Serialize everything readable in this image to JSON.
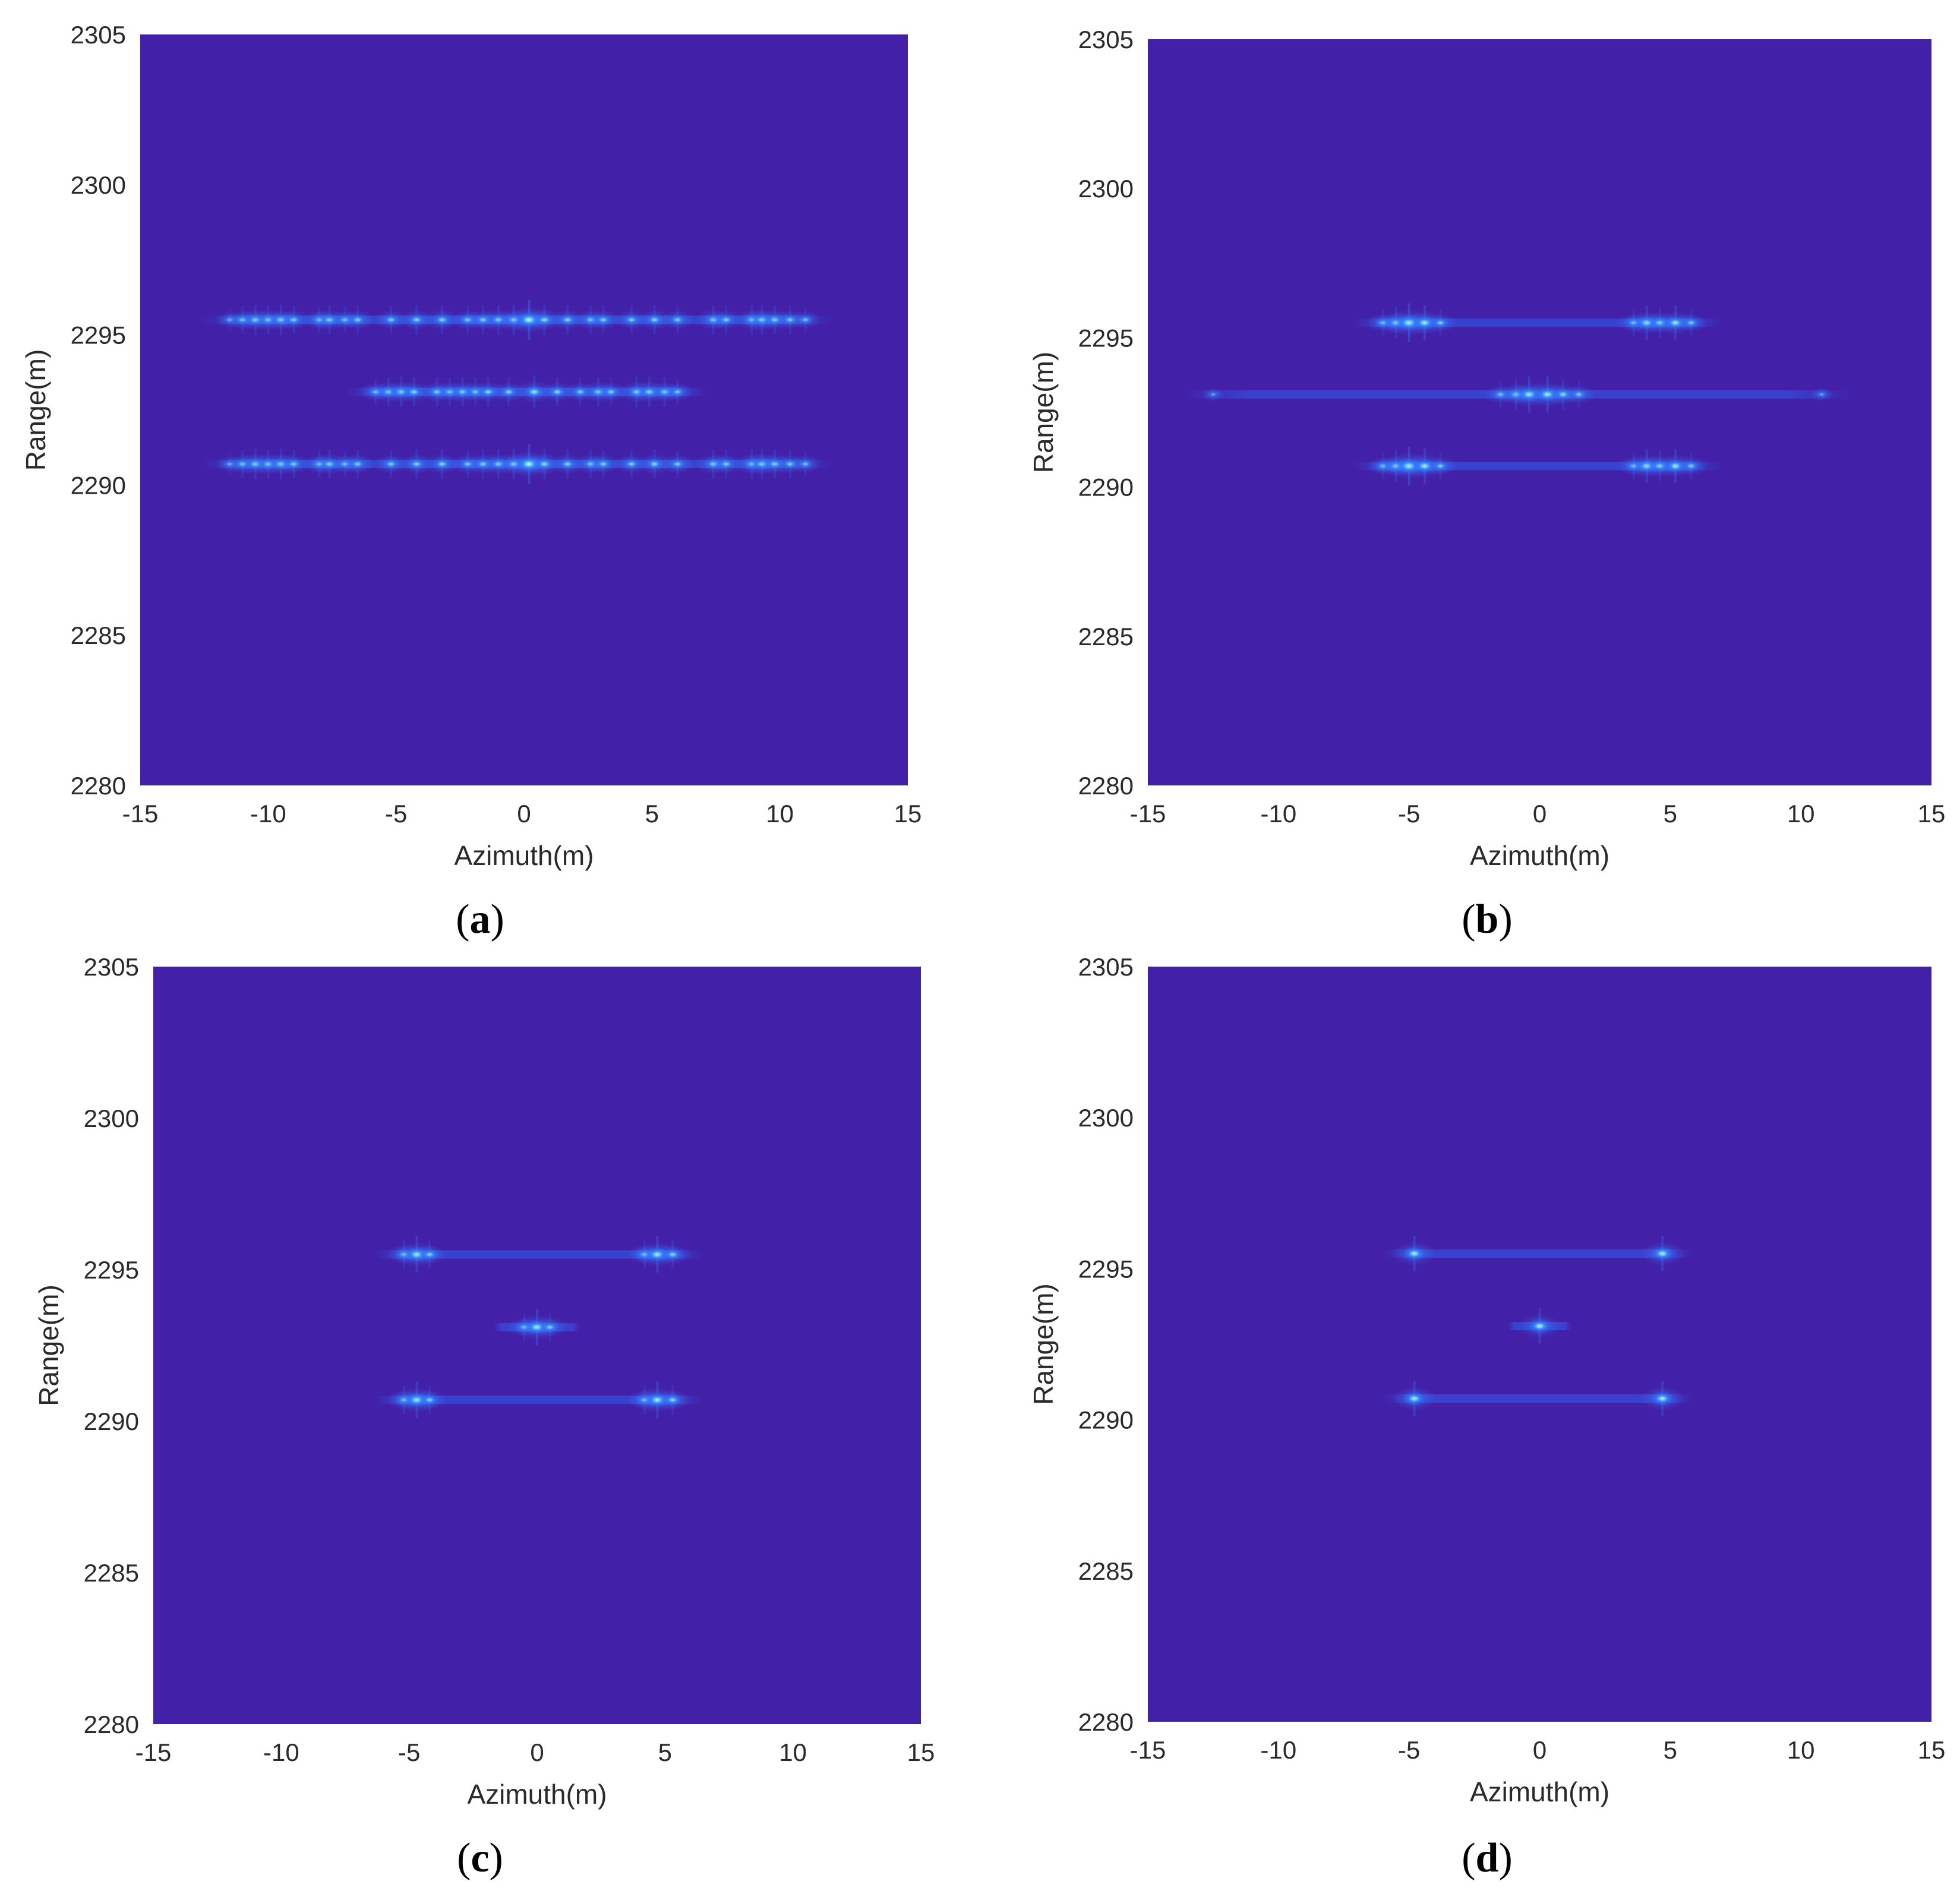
{
  "panel_background": "#4220a8",
  "chart_data": [
    {
      "type": "heatmap",
      "caption": "a",
      "xlabel": "Azimuth(m)",
      "ylabel": "Range(m)",
      "xlim": [
        -15,
        15
      ],
      "ylim": [
        2280,
        2305
      ],
      "xticks": [
        "-15",
        "-10",
        "-5",
        "0",
        "5",
        "10",
        "15"
      ],
      "yticks": [
        "2305",
        "2300",
        "2295",
        "2290",
        "2285",
        "2280"
      ],
      "grid": false,
      "rows": [
        {
          "range": 2295.5,
          "points": [
            {
              "x": -11.5,
              "w": 0.3
            },
            {
              "x": -11.0,
              "w": 0.5
            },
            {
              "x": -10.5,
              "w": 0.6
            },
            {
              "x": -10.0,
              "w": 0.55
            },
            {
              "x": -9.5,
              "w": 0.6
            },
            {
              "x": -9.0,
              "w": 0.5
            },
            {
              "x": -8.0,
              "w": 0.5
            },
            {
              "x": -7.6,
              "w": 0.55
            },
            {
              "x": -7.0,
              "w": 0.45
            },
            {
              "x": -6.5,
              "w": 0.5
            },
            {
              "x": -5.2,
              "w": 0.5
            },
            {
              "x": -4.2,
              "w": 0.55
            },
            {
              "x": -3.2,
              "w": 0.55
            },
            {
              "x": -2.2,
              "w": 0.5
            },
            {
              "x": -1.6,
              "w": 0.55
            },
            {
              "x": -1.0,
              "w": 0.55
            },
            {
              "x": -0.4,
              "w": 0.6
            },
            {
              "x": 0.2,
              "w": 1.0
            },
            {
              "x": 0.8,
              "w": 0.6
            },
            {
              "x": 1.7,
              "w": 0.55
            },
            {
              "x": 2.6,
              "w": 0.5
            },
            {
              "x": 3.1,
              "w": 0.5
            },
            {
              "x": 4.2,
              "w": 0.5
            },
            {
              "x": 5.1,
              "w": 0.55
            },
            {
              "x": 6.0,
              "w": 0.5
            },
            {
              "x": 7.4,
              "w": 0.55
            },
            {
              "x": 7.9,
              "w": 0.5
            },
            {
              "x": 8.9,
              "w": 0.55
            },
            {
              "x": 9.3,
              "w": 0.6
            },
            {
              "x": 9.8,
              "w": 0.55
            },
            {
              "x": 10.4,
              "w": 0.5
            },
            {
              "x": 11.0,
              "w": 0.4
            }
          ]
        },
        {
          "range": 2293.1,
          "points": [
            {
              "x": -5.8,
              "w": 0.45
            },
            {
              "x": -5.3,
              "w": 0.55
            },
            {
              "x": -4.8,
              "w": 0.6
            },
            {
              "x": -4.3,
              "w": 0.55
            },
            {
              "x": -3.4,
              "w": 0.55
            },
            {
              "x": -2.9,
              "w": 0.5
            },
            {
              "x": -2.4,
              "w": 0.55
            },
            {
              "x": -1.9,
              "w": 0.5
            },
            {
              "x": -1.4,
              "w": 0.55
            },
            {
              "x": -0.6,
              "w": 0.55
            },
            {
              "x": 0.4,
              "w": 0.7
            },
            {
              "x": 1.3,
              "w": 0.55
            },
            {
              "x": 2.2,
              "w": 0.5
            },
            {
              "x": 2.9,
              "w": 0.55
            },
            {
              "x": 3.4,
              "w": 0.5
            },
            {
              "x": 4.4,
              "w": 0.6
            },
            {
              "x": 4.9,
              "w": 0.6
            },
            {
              "x": 5.5,
              "w": 0.55
            },
            {
              "x": 6.0,
              "w": 0.45
            }
          ]
        },
        {
          "range": 2290.7,
          "points": [
            {
              "x": -11.5,
              "w": 0.3
            },
            {
              "x": -11.0,
              "w": 0.5
            },
            {
              "x": -10.5,
              "w": 0.6
            },
            {
              "x": -10.0,
              "w": 0.55
            },
            {
              "x": -9.5,
              "w": 0.6
            },
            {
              "x": -9.0,
              "w": 0.5
            },
            {
              "x": -8.0,
              "w": 0.5
            },
            {
              "x": -7.6,
              "w": 0.55
            },
            {
              "x": -7.0,
              "w": 0.45
            },
            {
              "x": -6.5,
              "w": 0.5
            },
            {
              "x": -5.2,
              "w": 0.5
            },
            {
              "x": -4.2,
              "w": 0.55
            },
            {
              "x": -3.2,
              "w": 0.55
            },
            {
              "x": -2.2,
              "w": 0.5
            },
            {
              "x": -1.6,
              "w": 0.55
            },
            {
              "x": -1.0,
              "w": 0.55
            },
            {
              "x": -0.4,
              "w": 0.6
            },
            {
              "x": 0.2,
              "w": 1.0
            },
            {
              "x": 0.8,
              "w": 0.6
            },
            {
              "x": 1.7,
              "w": 0.55
            },
            {
              "x": 2.6,
              "w": 0.5
            },
            {
              "x": 3.1,
              "w": 0.5
            },
            {
              "x": 4.2,
              "w": 0.5
            },
            {
              "x": 5.1,
              "w": 0.55
            },
            {
              "x": 6.0,
              "w": 0.5
            },
            {
              "x": 7.4,
              "w": 0.55
            },
            {
              "x": 7.9,
              "w": 0.5
            },
            {
              "x": 8.9,
              "w": 0.55
            },
            {
              "x": 9.3,
              "w": 0.6
            },
            {
              "x": 9.8,
              "w": 0.55
            },
            {
              "x": 10.4,
              "w": 0.5
            },
            {
              "x": 11.0,
              "w": 0.4
            }
          ]
        }
      ]
    },
    {
      "type": "heatmap",
      "caption": "b",
      "xlabel": "Azimuth(m)",
      "ylabel": "Range(m)",
      "xlim": [
        -15,
        15
      ],
      "ylim": [
        2280,
        2305
      ],
      "xticks": [
        "-15",
        "-10",
        "-5",
        "0",
        "5",
        "10",
        "15"
      ],
      "yticks": [
        "2305",
        "2300",
        "2295",
        "2290",
        "2285",
        "2280"
      ],
      "grid": false,
      "rows": [
        {
          "range": 2295.5,
          "points": [
            {
              "x": -6.0,
              "w": 0.45
            },
            {
              "x": -5.5,
              "w": 0.65
            },
            {
              "x": -5.0,
              "w": 0.95
            },
            {
              "x": -4.4,
              "w": 0.8
            },
            {
              "x": -3.8,
              "w": 0.45
            },
            {
              "x": 3.6,
              "w": 0.45
            },
            {
              "x": 4.1,
              "w": 0.75
            },
            {
              "x": 4.6,
              "w": 0.6
            },
            {
              "x": 5.2,
              "w": 0.75
            },
            {
              "x": 5.8,
              "w": 0.45
            }
          ]
        },
        {
          "range": 2293.1,
          "points": [
            {
              "x": -12.5,
              "w": 0.15
            },
            {
              "x": -1.5,
              "w": 0.45
            },
            {
              "x": -0.9,
              "w": 0.6
            },
            {
              "x": -0.4,
              "w": 0.85
            },
            {
              "x": 0.3,
              "w": 0.85
            },
            {
              "x": 0.9,
              "w": 0.6
            },
            {
              "x": 1.5,
              "w": 0.45
            },
            {
              "x": 10.8,
              "w": 0.15
            }
          ]
        },
        {
          "range": 2290.7,
          "points": [
            {
              "x": -6.0,
              "w": 0.45
            },
            {
              "x": -5.5,
              "w": 0.65
            },
            {
              "x": -5.0,
              "w": 0.95
            },
            {
              "x": -4.4,
              "w": 0.8
            },
            {
              "x": -3.8,
              "w": 0.45
            },
            {
              "x": 3.6,
              "w": 0.45
            },
            {
              "x": 4.1,
              "w": 0.75
            },
            {
              "x": 4.6,
              "w": 0.6
            },
            {
              "x": 5.2,
              "w": 0.75
            },
            {
              "x": 5.8,
              "w": 0.45
            }
          ]
        }
      ]
    },
    {
      "type": "heatmap",
      "caption": "c",
      "xlabel": "Azimuth(m)",
      "ylabel": "Range(m)",
      "xlim": [
        -15,
        15
      ],
      "ylim": [
        2280,
        2305
      ],
      "xticks": [
        "-15",
        "-10",
        "-5",
        "0",
        "5",
        "10",
        "15"
      ],
      "yticks": [
        "2305",
        "2300",
        "2295",
        "2290",
        "2285",
        "2280"
      ],
      "grid": false,
      "rows": [
        {
          "range": 2295.5,
          "points": [
            {
              "x": -5.2,
              "w": 0.5
            },
            {
              "x": -4.7,
              "w": 0.85
            },
            {
              "x": -4.2,
              "w": 0.5
            },
            {
              "x": 4.2,
              "w": 0.5
            },
            {
              "x": 4.7,
              "w": 0.85
            },
            {
              "x": 5.3,
              "w": 0.55
            }
          ]
        },
        {
          "range": 2293.1,
          "points": [
            {
              "x": -0.5,
              "w": 0.5
            },
            {
              "x": 0.0,
              "w": 0.85
            },
            {
              "x": 0.5,
              "w": 0.5
            }
          ]
        },
        {
          "range": 2290.7,
          "points": [
            {
              "x": -5.2,
              "w": 0.5
            },
            {
              "x": -4.7,
              "w": 0.85
            },
            {
              "x": -4.2,
              "w": 0.5
            },
            {
              "x": 4.2,
              "w": 0.5
            },
            {
              "x": 4.7,
              "w": 0.85
            },
            {
              "x": 5.3,
              "w": 0.55
            }
          ]
        }
      ]
    },
    {
      "type": "heatmap",
      "caption": "d",
      "xlabel": "Azimuth(m)",
      "ylabel": "Range(m)",
      "xlim": [
        -15,
        15
      ],
      "ylim": [
        2280,
        2305
      ],
      "xticks": [
        "-15",
        "-10",
        "-5",
        "0",
        "5",
        "10",
        "15"
      ],
      "yticks": [
        "2305",
        "2300",
        "2295",
        "2290",
        "2285",
        "2280"
      ],
      "grid": false,
      "rows": [
        {
          "range": 2295.5,
          "points": [
            {
              "x": -4.8,
              "w": 0.8
            },
            {
              "x": 4.7,
              "w": 0.8
            }
          ]
        },
        {
          "range": 2293.1,
          "points": [
            {
              "x": 0.0,
              "w": 0.8
            }
          ]
        },
        {
          "range": 2290.7,
          "points": [
            {
              "x": -4.8,
              "w": 0.8
            },
            {
              "x": 4.7,
              "w": 0.8
            }
          ]
        }
      ]
    }
  ]
}
